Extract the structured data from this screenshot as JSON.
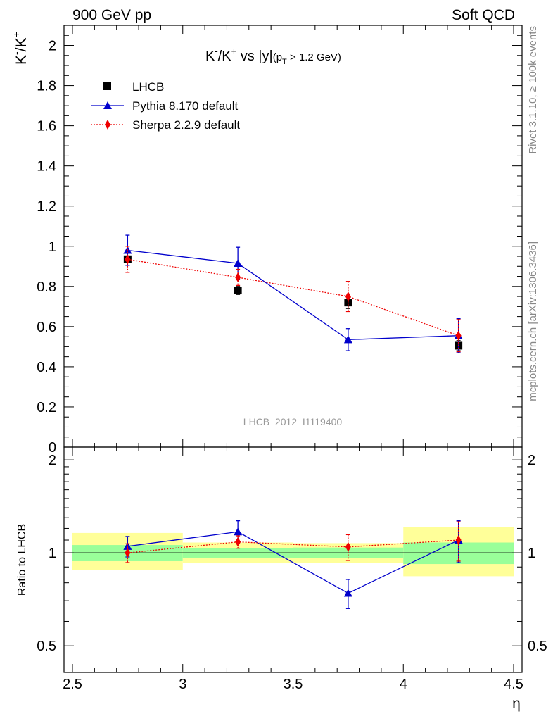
{
  "header": {
    "left": "900 GeV pp",
    "right": "Soft QCD"
  },
  "side_labels": {
    "rivet": "Rivet 3.1.10, ≥ 100k events",
    "mcplots": "mcplots.cern.ch [arXiv:1306.3436]"
  },
  "chart_data": [
    {
      "type": "line",
      "panel": "main",
      "title": "K⁻/K⁺ vs |y|(pT > 1.2 GeV)",
      "title_parts": {
        "main": "K",
        "sup1": "-",
        "slash": "/K",
        "sup2": "+",
        "vs": " vs |y|",
        "cond_open": "(p",
        "cond_sub": "T",
        "cond_rest": " > 1.2 GeV)"
      },
      "ylabel": "K⁻/K⁺",
      "ylabel_parts": {
        "k1": "K",
        "sup1": "-",
        "slash": "/K",
        "sup2": "+"
      },
      "xlabel": "",
      "xlim": [
        2.5,
        4.5
      ],
      "ylim": [
        0,
        2.1
      ],
      "yticks": [
        {
          "v": 0,
          "label": "0"
        },
        {
          "v": 0.2,
          "label": "0.2"
        },
        {
          "v": 0.4,
          "label": "0.4"
        },
        {
          "v": 0.6,
          "label": "0.6"
        },
        {
          "v": 0.8,
          "label": "0.8"
        },
        {
          "v": 1.0,
          "label": "1"
        },
        {
          "v": 1.2,
          "label": "1.2"
        },
        {
          "v": 1.4,
          "label": "1.4"
        },
        {
          "v": 1.6,
          "label": "1.6"
        },
        {
          "v": 1.8,
          "label": "1.8"
        },
        {
          "v": 2.0,
          "label": "2"
        }
      ],
      "watermark": "LHCB_2012_I1119400",
      "legend_position": "top-left",
      "series": [
        {
          "name": "LHCB",
          "color": "#000000",
          "marker": "square",
          "line": "none",
          "x": [
            2.75,
            3.25,
            3.75,
            4.25
          ],
          "y": [
            0.935,
            0.78,
            0.72,
            0.505
          ],
          "err": [
            0.03,
            0.02,
            0.03,
            0.025
          ]
        },
        {
          "name": "Pythia 8.170 default",
          "color": "#0000cc",
          "marker": "triangle",
          "line": "solid",
          "x": [
            2.75,
            3.25,
            3.75,
            4.25
          ],
          "y": [
            0.98,
            0.915,
            0.535,
            0.555
          ],
          "err": [
            0.075,
            0.08,
            0.055,
            0.085
          ]
        },
        {
          "name": "Sherpa 2.2.9 default",
          "color": "#ee0000",
          "marker": "diamond",
          "line": "dotted",
          "x": [
            2.75,
            3.25,
            3.75,
            4.25
          ],
          "y": [
            0.935,
            0.845,
            0.75,
            0.555
          ],
          "err": [
            0.065,
            0.04,
            0.075,
            0.08
          ]
        }
      ]
    },
    {
      "type": "line",
      "panel": "ratio",
      "ylabel": "Ratio to LHCB",
      "xlabel": "η",
      "yscale": "log",
      "xlim": [
        2.5,
        4.5
      ],
      "ylim": [
        0.41,
        2.2
      ],
      "xticks": [
        {
          "v": 2.5,
          "label": "2.5"
        },
        {
          "v": 3.0,
          "label": "3"
        },
        {
          "v": 3.5,
          "label": "3.5"
        },
        {
          "v": 4.0,
          "label": "4"
        },
        {
          "v": 4.5,
          "label": "4.5"
        }
      ],
      "yticks": [
        {
          "v": 0.5,
          "label": "0.5"
        },
        {
          "v": 1.0,
          "label": "1"
        },
        {
          "v": 2.0,
          "label": "2"
        }
      ],
      "bands": [
        {
          "x0": 2.5,
          "x1": 3.0,
          "y1_lo": 0.94,
          "y1_hi": 1.06,
          "y2_lo": 0.88,
          "y2_hi": 1.16
        },
        {
          "x0": 3.0,
          "x1": 3.5,
          "y1_lo": 0.965,
          "y1_hi": 1.035,
          "y2_lo": 0.925,
          "y2_hi": 1.08
        },
        {
          "x0": 3.5,
          "x1": 4.0,
          "y1_lo": 0.96,
          "y1_hi": 1.04,
          "y2_lo": 0.93,
          "y2_hi": 1.075
        },
        {
          "x0": 4.0,
          "x1": 4.5,
          "y1_lo": 0.92,
          "y1_hi": 1.08,
          "y2_lo": 0.84,
          "y2_hi": 1.21
        }
      ],
      "band_colors": {
        "inner": "#99ff99",
        "outer": "#ffff99"
      },
      "series": [
        {
          "name": "Pythia 8.170 default",
          "color": "#0000cc",
          "marker": "triangle",
          "line": "solid",
          "x": [
            2.75,
            3.25,
            3.75,
            4.25
          ],
          "y": [
            1.05,
            1.17,
            0.74,
            1.1
          ],
          "err": [
            0.08,
            0.1,
            0.08,
            0.17
          ]
        },
        {
          "name": "Sherpa 2.2.9 default",
          "color": "#ee0000",
          "marker": "diamond",
          "line": "dotted",
          "x": [
            2.75,
            3.25,
            3.75,
            4.25
          ],
          "y": [
            1.0,
            1.085,
            1.045,
            1.1
          ],
          "err": [
            0.07,
            0.05,
            0.1,
            0.16
          ]
        }
      ]
    }
  ]
}
